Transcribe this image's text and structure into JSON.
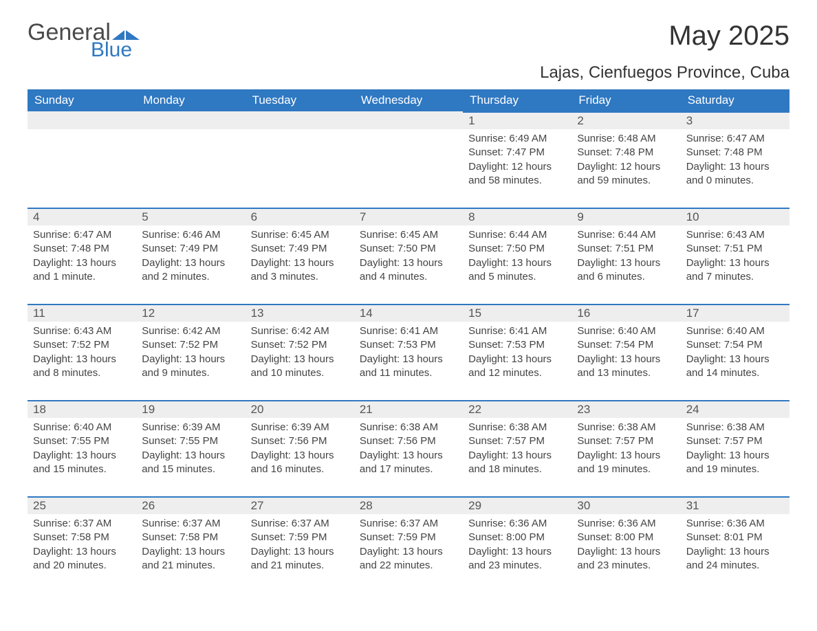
{
  "brand": {
    "general": "General",
    "blue": "Blue"
  },
  "title": "May 2025",
  "location": "Lajas, Cienfuegos Province, Cuba",
  "colors": {
    "header_bg": "#2f78c2",
    "header_text": "#ffffff",
    "daynum_bg": "#eeeeee",
    "day_border": "#2f78c2",
    "body_bg": "#ffffff",
    "text": "#333333",
    "logo_gray": "#4a4a4a",
    "logo_blue": "#2f78c2"
  },
  "day_names": [
    "Sunday",
    "Monday",
    "Tuesday",
    "Wednesday",
    "Thursday",
    "Friday",
    "Saturday"
  ],
  "first_weekday_index": 4,
  "days": [
    {
      "n": 1,
      "sunrise": "6:49 AM",
      "sunset": "7:47 PM",
      "daylight": "12 hours and 58 minutes."
    },
    {
      "n": 2,
      "sunrise": "6:48 AM",
      "sunset": "7:48 PM",
      "daylight": "12 hours and 59 minutes."
    },
    {
      "n": 3,
      "sunrise": "6:47 AM",
      "sunset": "7:48 PM",
      "daylight": "13 hours and 0 minutes."
    },
    {
      "n": 4,
      "sunrise": "6:47 AM",
      "sunset": "7:48 PM",
      "daylight": "13 hours and 1 minute."
    },
    {
      "n": 5,
      "sunrise": "6:46 AM",
      "sunset": "7:49 PM",
      "daylight": "13 hours and 2 minutes."
    },
    {
      "n": 6,
      "sunrise": "6:45 AM",
      "sunset": "7:49 PM",
      "daylight": "13 hours and 3 minutes."
    },
    {
      "n": 7,
      "sunrise": "6:45 AM",
      "sunset": "7:50 PM",
      "daylight": "13 hours and 4 minutes."
    },
    {
      "n": 8,
      "sunrise": "6:44 AM",
      "sunset": "7:50 PM",
      "daylight": "13 hours and 5 minutes."
    },
    {
      "n": 9,
      "sunrise": "6:44 AM",
      "sunset": "7:51 PM",
      "daylight": "13 hours and 6 minutes."
    },
    {
      "n": 10,
      "sunrise": "6:43 AM",
      "sunset": "7:51 PM",
      "daylight": "13 hours and 7 minutes."
    },
    {
      "n": 11,
      "sunrise": "6:43 AM",
      "sunset": "7:52 PM",
      "daylight": "13 hours and 8 minutes."
    },
    {
      "n": 12,
      "sunrise": "6:42 AM",
      "sunset": "7:52 PM",
      "daylight": "13 hours and 9 minutes."
    },
    {
      "n": 13,
      "sunrise": "6:42 AM",
      "sunset": "7:52 PM",
      "daylight": "13 hours and 10 minutes."
    },
    {
      "n": 14,
      "sunrise": "6:41 AM",
      "sunset": "7:53 PM",
      "daylight": "13 hours and 11 minutes."
    },
    {
      "n": 15,
      "sunrise": "6:41 AM",
      "sunset": "7:53 PM",
      "daylight": "13 hours and 12 minutes."
    },
    {
      "n": 16,
      "sunrise": "6:40 AM",
      "sunset": "7:54 PM",
      "daylight": "13 hours and 13 minutes."
    },
    {
      "n": 17,
      "sunrise": "6:40 AM",
      "sunset": "7:54 PM",
      "daylight": "13 hours and 14 minutes."
    },
    {
      "n": 18,
      "sunrise": "6:40 AM",
      "sunset": "7:55 PM",
      "daylight": "13 hours and 15 minutes."
    },
    {
      "n": 19,
      "sunrise": "6:39 AM",
      "sunset": "7:55 PM",
      "daylight": "13 hours and 15 minutes."
    },
    {
      "n": 20,
      "sunrise": "6:39 AM",
      "sunset": "7:56 PM",
      "daylight": "13 hours and 16 minutes."
    },
    {
      "n": 21,
      "sunrise": "6:38 AM",
      "sunset": "7:56 PM",
      "daylight": "13 hours and 17 minutes."
    },
    {
      "n": 22,
      "sunrise": "6:38 AM",
      "sunset": "7:57 PM",
      "daylight": "13 hours and 18 minutes."
    },
    {
      "n": 23,
      "sunrise": "6:38 AM",
      "sunset": "7:57 PM",
      "daylight": "13 hours and 19 minutes."
    },
    {
      "n": 24,
      "sunrise": "6:38 AM",
      "sunset": "7:57 PM",
      "daylight": "13 hours and 19 minutes."
    },
    {
      "n": 25,
      "sunrise": "6:37 AM",
      "sunset": "7:58 PM",
      "daylight": "13 hours and 20 minutes."
    },
    {
      "n": 26,
      "sunrise": "6:37 AM",
      "sunset": "7:58 PM",
      "daylight": "13 hours and 21 minutes."
    },
    {
      "n": 27,
      "sunrise": "6:37 AM",
      "sunset": "7:59 PM",
      "daylight": "13 hours and 21 minutes."
    },
    {
      "n": 28,
      "sunrise": "6:37 AM",
      "sunset": "7:59 PM",
      "daylight": "13 hours and 22 minutes."
    },
    {
      "n": 29,
      "sunrise": "6:36 AM",
      "sunset": "8:00 PM",
      "daylight": "13 hours and 23 minutes."
    },
    {
      "n": 30,
      "sunrise": "6:36 AM",
      "sunset": "8:00 PM",
      "daylight": "13 hours and 23 minutes."
    },
    {
      "n": 31,
      "sunrise": "6:36 AM",
      "sunset": "8:01 PM",
      "daylight": "13 hours and 24 minutes."
    }
  ],
  "labels": {
    "sunrise": "Sunrise:",
    "sunset": "Sunset:",
    "daylight": "Daylight:"
  }
}
